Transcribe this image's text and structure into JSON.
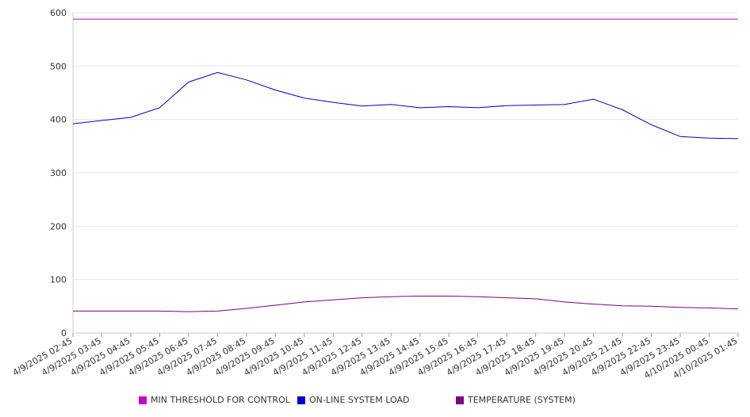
{
  "chart_data": {
    "type": "line",
    "title": "",
    "xlabel": "",
    "ylabel": "",
    "ylim": [
      0,
      600
    ],
    "yticks": [
      0,
      100,
      200,
      300,
      400,
      500,
      600
    ],
    "grid": true,
    "legend_position": "bottom",
    "categories": [
      "4/9/2025 02:45",
      "4/9/2025 03:45",
      "4/9/2025 04:45",
      "4/9/2025 05:45",
      "4/9/2025 06:45",
      "4/9/2025 07:45",
      "4/9/2025 08:45",
      "4/9/2025 09:45",
      "4/9/2025 10:45",
      "4/9/2025 11:45",
      "4/9/2025 12:45",
      "4/9/2025 13:45",
      "4/9/2025 14:45",
      "4/9/2025 15:45",
      "4/9/2025 16:45",
      "4/9/2025 17:45",
      "4/9/2025 18:45",
      "4/9/2025 19:45",
      "4/9/2025 20:45",
      "4/9/2025 21:45",
      "4/9/2025 22:45",
      "4/9/2025 23:45",
      "4/10/2025 00:45",
      "4/10/2025 01:45"
    ],
    "series": [
      {
        "name": "MIN THRESHOLD FOR CONTROL",
        "color": "#cc00cc",
        "values": [
          588,
          588,
          588,
          588,
          588,
          588,
          588,
          588,
          588,
          588,
          588,
          588,
          588,
          588,
          588,
          588,
          588,
          588,
          588,
          588,
          588,
          588,
          588,
          588
        ]
      },
      {
        "name": "ON-LINE SYSTEM LOAD",
        "color": "#0000cc",
        "values": [
          392,
          398,
          404,
          422,
          470,
          488,
          474,
          455,
          440,
          432,
          425,
          428,
          422,
          424,
          422,
          426,
          427,
          428,
          438,
          418,
          390,
          368,
          365,
          364
        ]
      },
      {
        "name": "TEMPERATURE (SYSTEM)",
        "color": "#800080",
        "values": [
          41,
          41,
          41,
          41,
          40,
          41,
          46,
          52,
          58,
          62,
          66,
          68,
          69,
          69,
          68,
          66,
          64,
          58,
          54,
          51,
          50,
          48,
          47,
          45
        ]
      }
    ]
  }
}
